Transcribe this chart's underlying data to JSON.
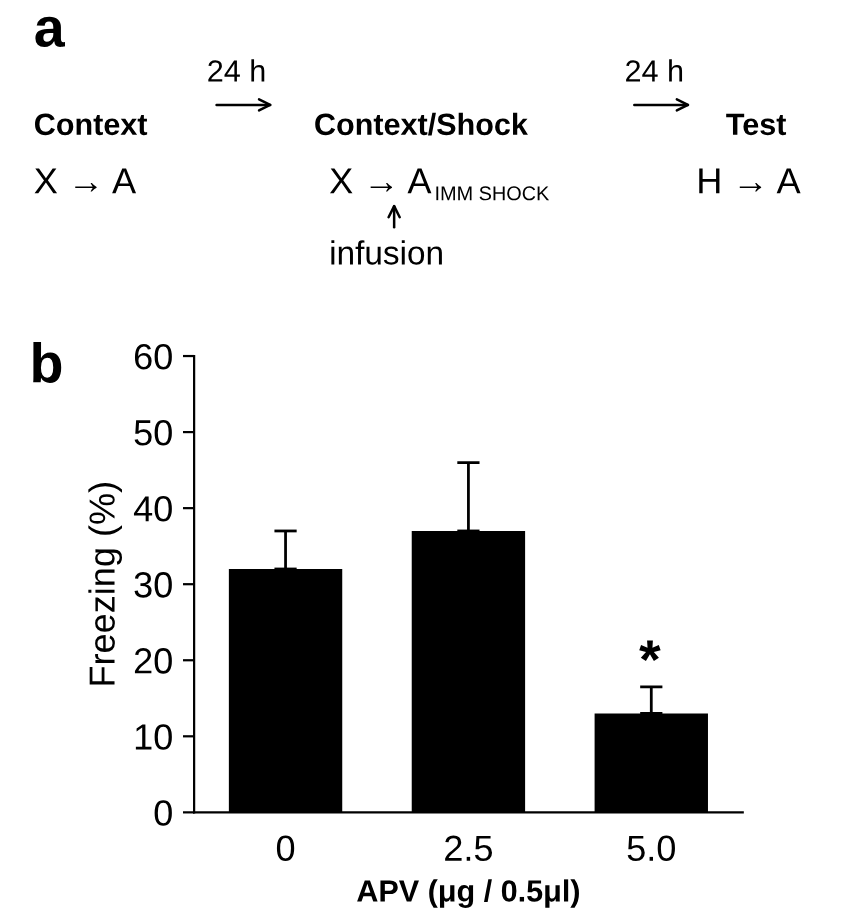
{
  "chart_data": {
    "type": "bar",
    "categories": [
      "0",
      "2.5",
      "5.0"
    ],
    "values": [
      32,
      37,
      13
    ],
    "errors": [
      [
        32,
        37
      ],
      [
        37,
        46
      ],
      [
        13,
        16.5
      ]
    ],
    "color": "#000000",
    "xlabel": "APV (μg / 0.5μl)",
    "ylabel": "Freezing (%)",
    "ylim": [
      0,
      60
    ],
    "yticks": [
      0,
      10,
      20,
      30,
      40,
      50,
      60
    ],
    "grid": false,
    "legend": false,
    "annotations": [
      "a",
      "Context",
      "24 h",
      "Context/Shock",
      "24 h",
      "Test",
      "X → A",
      "X → A$_{IMM SHOCK}$",
      "H → A",
      "infusion",
      "b",
      "*"
    ]
  }
}
